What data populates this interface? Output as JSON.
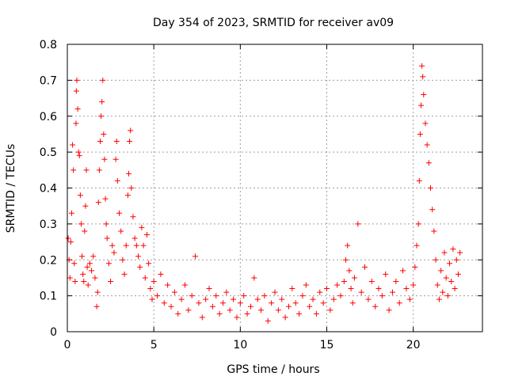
{
  "chart_data": {
    "type": "scatter",
    "title": "Day 354 of 2023, SRMTID for receiver av09",
    "xlabel": "GPS time / hours",
    "ylabel": "SRMTID / TECUs",
    "xlim": [
      0,
      24
    ],
    "ylim": [
      0,
      0.8
    ],
    "xticks": [
      0,
      5,
      10,
      15,
      20
    ],
    "xtick_labels": [
      "0",
      "5",
      "10",
      "15",
      "20"
    ],
    "yticks": [
      0,
      0.1,
      0.2,
      0.3,
      0.4,
      0.5,
      0.6,
      0.7,
      0.8
    ],
    "ytick_labels": [
      "0",
      "0.1",
      "0.2",
      "0.3",
      "0.4",
      "0.5",
      "0.6",
      "0.7",
      "0.8"
    ],
    "grid": true,
    "marker": "plus",
    "series": [
      {
        "name": "av09",
        "color": "#ff0000",
        "points": [
          [
            0.05,
            0.26
          ],
          [
            0.1,
            0.2
          ],
          [
            0.15,
            0.15
          ],
          [
            0.2,
            0.25
          ],
          [
            0.25,
            0.33
          ],
          [
            0.3,
            0.52
          ],
          [
            0.35,
            0.45
          ],
          [
            0.4,
            0.19
          ],
          [
            0.45,
            0.14
          ],
          [
            0.5,
            0.58
          ],
          [
            0.52,
            0.67
          ],
          [
            0.55,
            0.7
          ],
          [
            0.6,
            0.62
          ],
          [
            0.65,
            0.5
          ],
          [
            0.7,
            0.49
          ],
          [
            0.75,
            0.38
          ],
          [
            0.8,
            0.3
          ],
          [
            0.85,
            0.21
          ],
          [
            0.9,
            0.16
          ],
          [
            0.95,
            0.14
          ],
          [
            1.0,
            0.28
          ],
          [
            1.05,
            0.35
          ],
          [
            1.1,
            0.45
          ],
          [
            1.15,
            0.18
          ],
          [
            1.2,
            0.13
          ],
          [
            1.3,
            0.19
          ],
          [
            1.4,
            0.17
          ],
          [
            1.5,
            0.21
          ],
          [
            1.6,
            0.15
          ],
          [
            1.7,
            0.07
          ],
          [
            1.75,
            0.11
          ],
          [
            1.8,
            0.36
          ],
          [
            1.85,
            0.45
          ],
          [
            1.9,
            0.53
          ],
          [
            1.95,
            0.6
          ],
          [
            2.0,
            0.64
          ],
          [
            2.05,
            0.7
          ],
          [
            2.1,
            0.55
          ],
          [
            2.15,
            0.48
          ],
          [
            2.2,
            0.37
          ],
          [
            2.25,
            0.3
          ],
          [
            2.3,
            0.26
          ],
          [
            2.4,
            0.19
          ],
          [
            2.5,
            0.14
          ],
          [
            2.6,
            0.24
          ],
          [
            2.7,
            0.22
          ],
          [
            2.8,
            0.48
          ],
          [
            2.85,
            0.53
          ],
          [
            2.9,
            0.42
          ],
          [
            3.0,
            0.33
          ],
          [
            3.1,
            0.28
          ],
          [
            3.2,
            0.2
          ],
          [
            3.3,
            0.16
          ],
          [
            3.4,
            0.24
          ],
          [
            3.5,
            0.38
          ],
          [
            3.55,
            0.44
          ],
          [
            3.6,
            0.53
          ],
          [
            3.65,
            0.56
          ],
          [
            3.7,
            0.4
          ],
          [
            3.8,
            0.32
          ],
          [
            3.9,
            0.26
          ],
          [
            4.0,
            0.24
          ],
          [
            4.1,
            0.21
          ],
          [
            4.2,
            0.18
          ],
          [
            4.3,
            0.29
          ],
          [
            4.4,
            0.24
          ],
          [
            4.5,
            0.15
          ],
          [
            4.6,
            0.27
          ],
          [
            4.7,
            0.19
          ],
          [
            4.8,
            0.12
          ],
          [
            4.9,
            0.09
          ],
          [
            5.0,
            0.14
          ],
          [
            5.2,
            0.1
          ],
          [
            5.4,
            0.16
          ],
          [
            5.6,
            0.08
          ],
          [
            5.8,
            0.13
          ],
          [
            6.0,
            0.07
          ],
          [
            6.2,
            0.11
          ],
          [
            6.4,
            0.05
          ],
          [
            6.6,
            0.09
          ],
          [
            6.8,
            0.13
          ],
          [
            7.0,
            0.06
          ],
          [
            7.2,
            0.1
          ],
          [
            7.4,
            0.21
          ],
          [
            7.6,
            0.08
          ],
          [
            7.8,
            0.04
          ],
          [
            8.0,
            0.09
          ],
          [
            8.2,
            0.12
          ],
          [
            8.4,
            0.07
          ],
          [
            8.6,
            0.1
          ],
          [
            8.8,
            0.05
          ],
          [
            9.0,
            0.08
          ],
          [
            9.2,
            0.11
          ],
          [
            9.4,
            0.06
          ],
          [
            9.6,
            0.09
          ],
          [
            9.8,
            0.04
          ],
          [
            10.0,
            0.08
          ],
          [
            10.2,
            0.1
          ],
          [
            10.4,
            0.05
          ],
          [
            10.6,
            0.07
          ],
          [
            10.8,
            0.15
          ],
          [
            11.0,
            0.09
          ],
          [
            11.2,
            0.06
          ],
          [
            11.4,
            0.1
          ],
          [
            11.6,
            0.03
          ],
          [
            11.8,
            0.08
          ],
          [
            12.0,
            0.11
          ],
          [
            12.2,
            0.06
          ],
          [
            12.4,
            0.09
          ],
          [
            12.6,
            0.04
          ],
          [
            12.8,
            0.07
          ],
          [
            13.0,
            0.12
          ],
          [
            13.2,
            0.08
          ],
          [
            13.4,
            0.05
          ],
          [
            13.6,
            0.1
          ],
          [
            13.8,
            0.13
          ],
          [
            14.0,
            0.07
          ],
          [
            14.2,
            0.09
          ],
          [
            14.4,
            0.05
          ],
          [
            14.6,
            0.11
          ],
          [
            14.8,
            0.08
          ],
          [
            15.0,
            0.12
          ],
          [
            15.2,
            0.06
          ],
          [
            15.4,
            0.09
          ],
          [
            15.6,
            0.13
          ],
          [
            15.8,
            0.1
          ],
          [
            16.0,
            0.14
          ],
          [
            16.1,
            0.2
          ],
          [
            16.2,
            0.24
          ],
          [
            16.3,
            0.17
          ],
          [
            16.4,
            0.12
          ],
          [
            16.5,
            0.08
          ],
          [
            16.6,
            0.15
          ],
          [
            16.8,
            0.3
          ],
          [
            17.0,
            0.11
          ],
          [
            17.2,
            0.18
          ],
          [
            17.4,
            0.09
          ],
          [
            17.6,
            0.14
          ],
          [
            17.8,
            0.07
          ],
          [
            18.0,
            0.12
          ],
          [
            18.2,
            0.1
          ],
          [
            18.4,
            0.16
          ],
          [
            18.6,
            0.06
          ],
          [
            18.8,
            0.11
          ],
          [
            19.0,
            0.14
          ],
          [
            19.2,
            0.08
          ],
          [
            19.4,
            0.17
          ],
          [
            19.6,
            0.12
          ],
          [
            19.8,
            0.09
          ],
          [
            20.0,
            0.13
          ],
          [
            20.1,
            0.18
          ],
          [
            20.2,
            0.24
          ],
          [
            20.3,
            0.3
          ],
          [
            20.35,
            0.42
          ],
          [
            20.4,
            0.55
          ],
          [
            20.45,
            0.63
          ],
          [
            20.5,
            0.74
          ],
          [
            20.55,
            0.71
          ],
          [
            20.6,
            0.66
          ],
          [
            20.7,
            0.58
          ],
          [
            20.8,
            0.52
          ],
          [
            20.9,
            0.47
          ],
          [
            21.0,
            0.4
          ],
          [
            21.1,
            0.34
          ],
          [
            21.2,
            0.28
          ],
          [
            21.3,
            0.2
          ],
          [
            21.4,
            0.13
          ],
          [
            21.5,
            0.09
          ],
          [
            21.6,
            0.17
          ],
          [
            21.7,
            0.11
          ],
          [
            21.8,
            0.22
          ],
          [
            21.9,
            0.15
          ],
          [
            22.0,
            0.1
          ],
          [
            22.1,
            0.19
          ],
          [
            22.2,
            0.14
          ],
          [
            22.3,
            0.23
          ],
          [
            22.4,
            0.12
          ],
          [
            22.5,
            0.2
          ],
          [
            22.6,
            0.16
          ],
          [
            22.7,
            0.22
          ]
        ]
      }
    ]
  }
}
